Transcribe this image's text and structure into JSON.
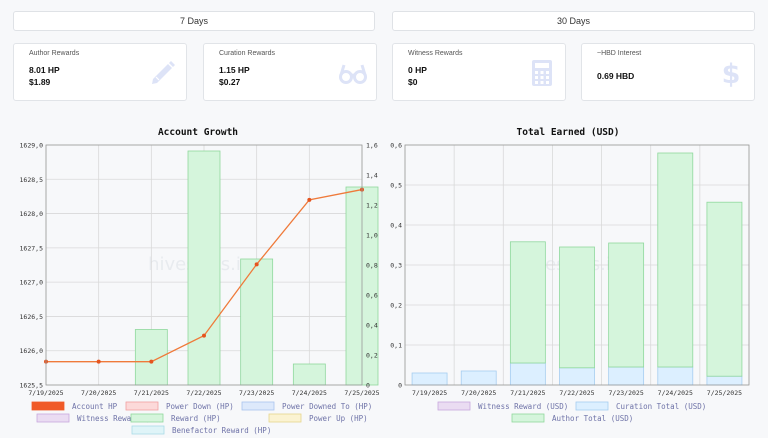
{
  "tabs": [
    {
      "label": "7 Days"
    },
    {
      "label": "30 Days"
    }
  ],
  "cards": [
    {
      "title": "Author Rewards",
      "value1": "8.01 HP",
      "value2": "$1.89",
      "icon": "pencil-icon"
    },
    {
      "title": "Curation Rewards",
      "value1": "1.15 HP",
      "value2": "$0.27",
      "icon": "glasses-icon"
    },
    {
      "title": "Witness Rewards",
      "value1": "0 HP",
      "value2": "$0",
      "icon": "calculator-icon"
    },
    {
      "title": "~HBD Interest",
      "value1": "0.69 HBD",
      "value2": "",
      "icon": "dollar-icon"
    }
  ],
  "colors": {
    "accent_icon": "#dde3f7",
    "line": "#ef7a3a",
    "reward_fill": "#d5f5dc",
    "reward_stroke": "#8fd89d",
    "curation_fill": "#dcefff",
    "curation_stroke": "#a6cdf0"
  },
  "chart_data": [
    {
      "type": "bar+line",
      "title": "Account Growth",
      "categories": [
        "7/19/2025",
        "7/20/2025",
        "7/21/2025",
        "7/22/2025",
        "7/23/2025",
        "7/24/2025",
        "7/25/2025"
      ],
      "y_left": {
        "min": 1625.5,
        "max": 1629.0,
        "ticks": [
          "1625,5",
          "1626,0",
          "1626,5",
          "1627,0",
          "1627,5",
          "1628,0",
          "1628,5",
          "1629,0"
        ]
      },
      "y_right": {
        "min": 0,
        "max": 1.6,
        "ticks": [
          "0",
          "0,2",
          "0,4",
          "0,6",
          "0,8",
          "1,0",
          "1,2",
          "1,4",
          "1,6"
        ]
      },
      "series": [
        {
          "name": "Account HP",
          "kind": "line",
          "axis": "left",
          "values": [
            1625.84,
            1625.84,
            1625.84,
            1626.22,
            1627.26,
            1628.2,
            1628.35
          ]
        },
        {
          "name": "Reward (HP)",
          "kind": "bar",
          "axis": "right",
          "values": [
            0,
            0,
            0.37,
            1.56,
            0.84,
            0.14,
            1.32
          ]
        }
      ],
      "legend": [
        {
          "name": "Account HP",
          "fill": "#f05a28",
          "stroke": "#f05a28"
        },
        {
          "name": "Power Down (HP)",
          "fill": "#fcd9d9",
          "stroke": "#f0a0a0"
        },
        {
          "name": "Power Downed To (HP)",
          "fill": "#dde9fb",
          "stroke": "#a9c4ee"
        },
        {
          "name": "Witness Reward (HP)",
          "fill": "#eadcf2",
          "stroke": "#c9a8de"
        },
        {
          "name": "Reward (HP)",
          "fill": "#d5f5dc",
          "stroke": "#8fd89d"
        },
        {
          "name": "Power Up (HP)",
          "fill": "#fbf3d2",
          "stroke": "#e6d58c"
        },
        {
          "name": "Benefactor Reward (HP)",
          "fill": "#dff4f8",
          "stroke": "#a9dbe6"
        }
      ],
      "grid": true,
      "watermark": "hivestats.io"
    },
    {
      "type": "stacked-bar",
      "title": "Total Earned (USD)",
      "categories": [
        "7/19/2025",
        "7/20/2025",
        "7/21/2025",
        "7/22/2025",
        "7/23/2025",
        "7/24/2025",
        "7/25/2025"
      ],
      "y": {
        "min": 0,
        "max": 0.6,
        "ticks": [
          "0",
          "0,1",
          "0,2",
          "0,3",
          "0,4",
          "0,5",
          "0,6"
        ]
      },
      "series": [
        {
          "name": "Curation Total (USD)",
          "values": [
            0.03,
            0.035,
            0.055,
            0.043,
            0.045,
            0.045,
            0.022
          ]
        },
        {
          "name": "Author Total (USD)",
          "values": [
            0,
            0,
            0.303,
            0.302,
            0.31,
            0.535,
            0.435
          ]
        }
      ],
      "legend": [
        {
          "name": "Witness Reward (USD)",
          "fill": "#eadcf2",
          "stroke": "#c9a8de"
        },
        {
          "name": "Curation Total (USD)",
          "fill": "#dcefff",
          "stroke": "#a6cdf0"
        },
        {
          "name": "Author Total (USD)",
          "fill": "#d5f5dc",
          "stroke": "#8fd89d"
        }
      ],
      "grid": true,
      "watermark": "hivestats.io"
    }
  ]
}
